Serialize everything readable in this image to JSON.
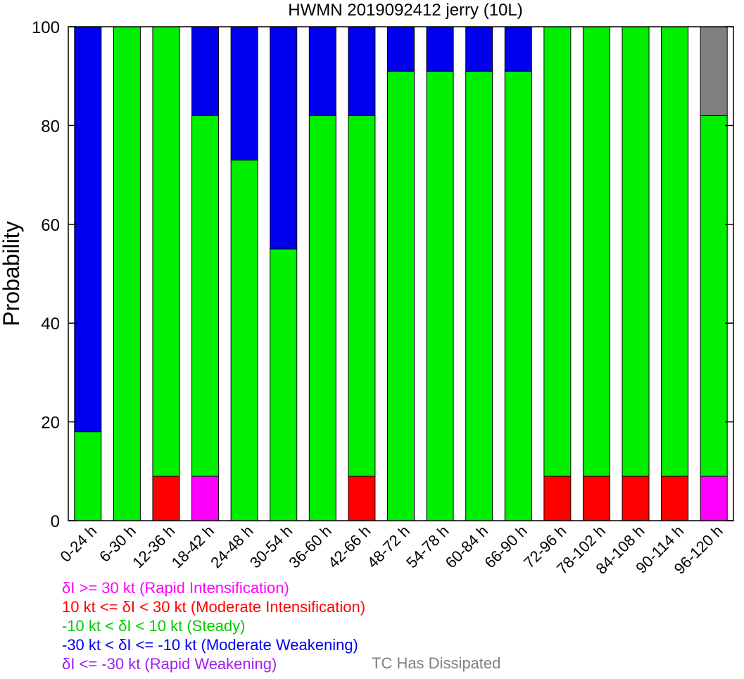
{
  "chart_data": {
    "type": "bar",
    "stacked": true,
    "title": "HWMN 2019092412 jerry (10L)",
    "xlabel": "",
    "ylabel": "Probability",
    "ylim": [
      0,
      100
    ],
    "yticks": [
      0,
      20,
      40,
      60,
      80,
      100
    ],
    "grid": false,
    "categories": [
      "0-24 h",
      "6-30 h",
      "12-36 h",
      "18-42 h",
      "24-48 h",
      "30-54 h",
      "36-60 h",
      "42-66 h",
      "48-72 h",
      "54-78 h",
      "60-84 h",
      "66-90 h",
      "72-96 h",
      "78-102 h",
      "84-108 h",
      "90-114 h",
      "96-120 h"
    ],
    "series": [
      {
        "key": "ri",
        "color": "#ff00ff",
        "values": [
          0,
          0,
          0,
          9,
          0,
          0,
          0,
          0,
          0,
          0,
          0,
          0,
          0,
          0,
          0,
          0,
          9
        ]
      },
      {
        "key": "mi",
        "color": "#ff0000",
        "values": [
          0,
          0,
          9,
          0,
          0,
          0,
          0,
          9,
          0,
          0,
          0,
          0,
          9,
          9,
          9,
          9,
          0
        ]
      },
      {
        "key": "st",
        "color": "#00ee00",
        "values": [
          18,
          100,
          91,
          73,
          73,
          55,
          82,
          73,
          91,
          91,
          91,
          91,
          91,
          91,
          91,
          91,
          73
        ]
      },
      {
        "key": "mw",
        "color": "#0000ee",
        "values": [
          82,
          0,
          0,
          18,
          27,
          45,
          18,
          18,
          9,
          9,
          9,
          9,
          0,
          0,
          0,
          0,
          0
        ]
      },
      {
        "key": "rw",
        "color": "#a020f0",
        "values": [
          0,
          0,
          0,
          0,
          0,
          0,
          0,
          0,
          0,
          0,
          0,
          0,
          0,
          0,
          0,
          0,
          0
        ]
      },
      {
        "key": "td",
        "color": "#808080",
        "values": [
          0,
          0,
          0,
          0,
          0,
          0,
          0,
          0,
          0,
          0,
          0,
          0,
          0,
          0,
          0,
          0,
          18
        ]
      }
    ],
    "legend": {
      "placement": "bottom-left",
      "entries": [
        {
          "label": "δI >= 30 kt (Rapid Intensification)",
          "color": "#ff00ff"
        },
        {
          "label": "10 kt <= δI < 30 kt (Moderate Intensification)",
          "color": "#ff0000"
        },
        {
          "label": "-10 kt < δI < 10 kt (Steady)",
          "color": "#00ee00"
        },
        {
          "label": "-30 kt < δI <= -10 kt (Moderate Weakening)",
          "color": "#0000ee"
        },
        {
          "label": "δI <= -30 kt (Rapid Weakening)",
          "color": "#a020f0"
        }
      ],
      "dissipated": {
        "label": "TC Has Dissipated",
        "color": "#808080"
      }
    }
  }
}
